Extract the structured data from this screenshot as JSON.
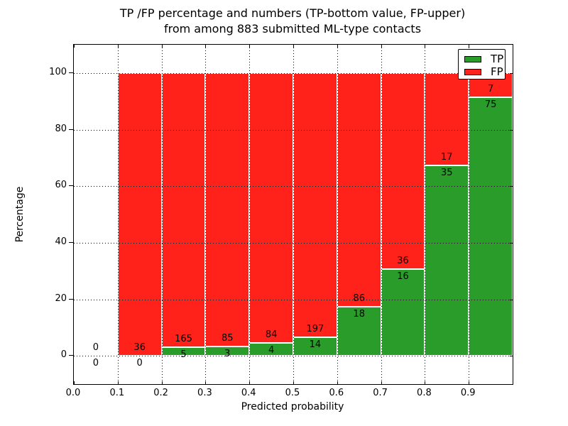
{
  "figure": {
    "title_line1": "TP /FP percentage and numbers (TP-bottom value, FP-upper)",
    "title_line2": "from among 883 submitted ML-type contacts"
  },
  "chart_data": {
    "type": "bar",
    "stacked": true,
    "normalized_to_percent": true,
    "title": "TP /FP percentage and numbers (TP-bottom value, FP-upper) from among 883 submitted ML-type contacts",
    "xlabel": "Predicted probability",
    "ylabel": "Percentage",
    "total_contacts": 883,
    "categories": [
      "0.0-0.1",
      "0.1-0.2",
      "0.2-0.3",
      "0.3-0.4",
      "0.4-0.5",
      "0.5-0.6",
      "0.6-0.7",
      "0.7-0.8",
      "0.8-0.9",
      "0.9-1.0"
    ],
    "series": [
      {
        "name": "TP",
        "color": "#2a9c2a",
        "counts": [
          0,
          0,
          5,
          3,
          4,
          14,
          18,
          16,
          35,
          75
        ]
      },
      {
        "name": "FP",
        "color": "#ff221a",
        "counts": [
          0,
          36,
          165,
          85,
          84,
          197,
          86,
          36,
          17,
          7
        ]
      }
    ],
    "bar_height_rule": "TP% = tp/(tp+fp)*100 from 0 upward (green), FP% stacked above to 100 (red); count labels drawn at the TP/FP boundary (FP above, TP below)",
    "x_tick_labels": [
      "0.0",
      "0.1",
      "0.2",
      "0.3",
      "0.4",
      "0.5",
      "0.6",
      "0.7",
      "0.8",
      "0.9"
    ],
    "y_ticks": [
      0,
      20,
      40,
      60,
      80,
      100
    ],
    "xlim": [
      0.0,
      1.0
    ],
    "ylim": [
      -10,
      110
    ],
    "grid": "dotted black, drawn above bars",
    "legend_position": "upper right",
    "bar_edge_color": "#ffffff",
    "text_color": "#000000",
    "background_color": "#ffffff"
  }
}
